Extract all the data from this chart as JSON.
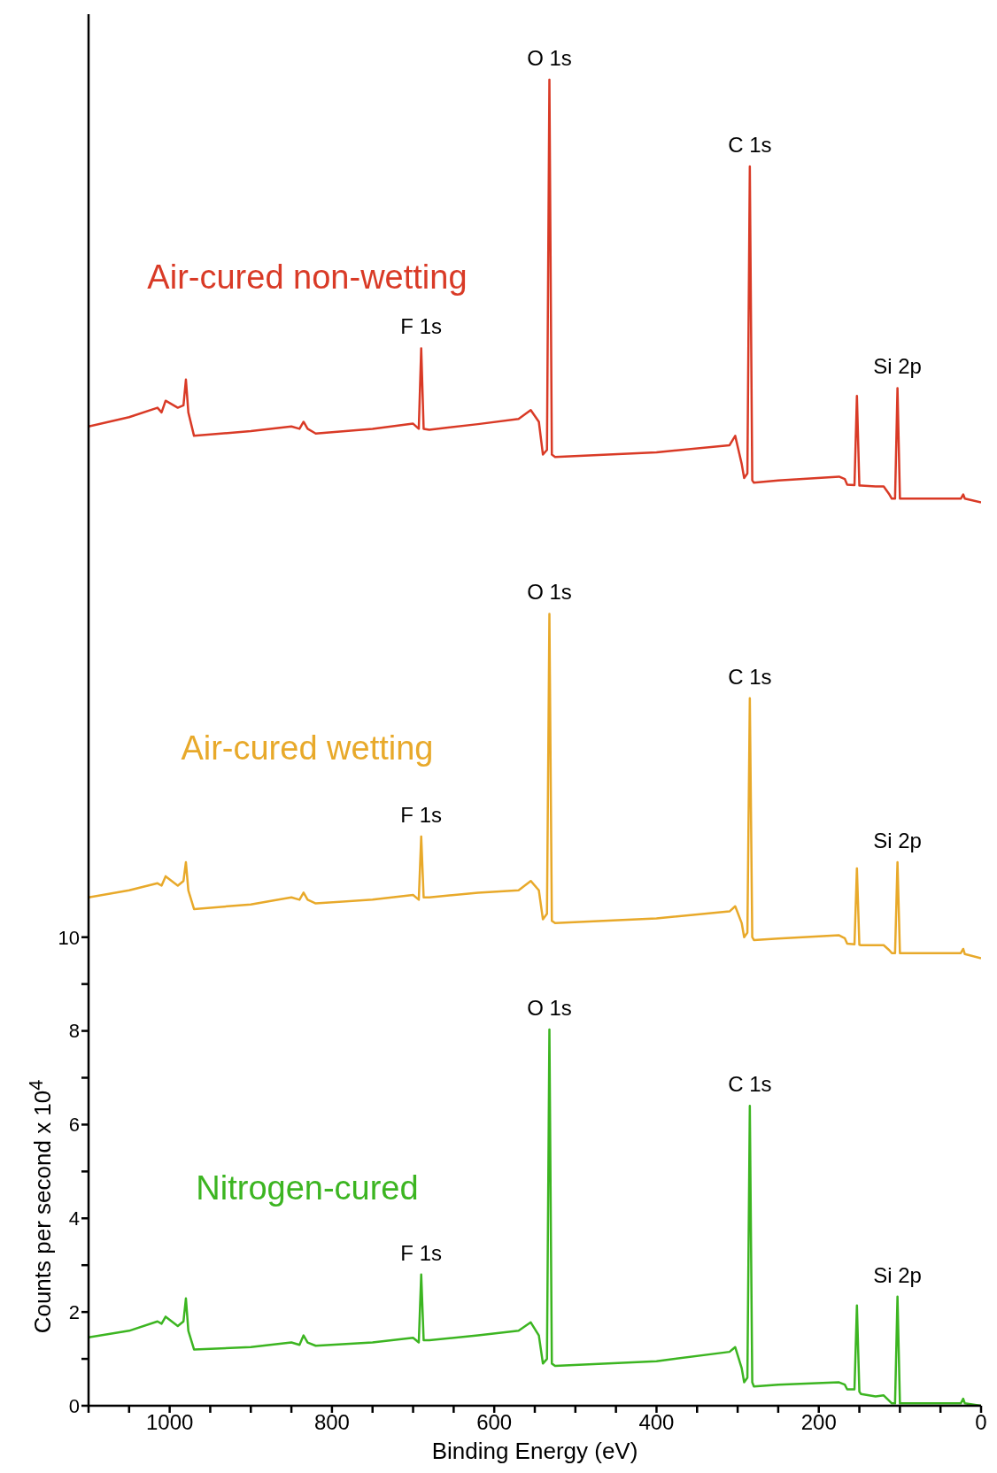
{
  "chart_data": {
    "type": "line",
    "xlabel": "Binding Energy (eV)",
    "ylabel": "Counts per second x 10$^{4}$",
    "xlim": [
      1100,
      0
    ],
    "xticks": [
      {
        "value": 1100,
        "label": null
      },
      {
        "value": 1050,
        "label": null
      },
      1000,
      {
        "value": 950,
        "label": null
      },
      {
        "value": 900,
        "label": null
      },
      {
        "value": 850,
        "label": null
      },
      800,
      {
        "value": 750,
        "label": null
      },
      {
        "value": 700,
        "label": null
      },
      {
        "value": 650,
        "label": null
      },
      600,
      {
        "value": 550,
        "label": null
      },
      {
        "value": 500,
        "label": null
      },
      {
        "value": 450,
        "label": null
      },
      400,
      {
        "value": 350,
        "label": null
      },
      {
        "value": 300,
        "label": null
      },
      {
        "value": 250,
        "label": null
      },
      200,
      {
        "value": 150,
        "label": null
      },
      {
        "value": 100,
        "label": null
      },
      {
        "value": 50,
        "label": null
      },
      0
    ],
    "ylim": [
      0,
      29.7
    ],
    "yticks": [
      0,
      {
        "value": 1,
        "label": null
      },
      2,
      {
        "value": 3,
        "label": null
      },
      4,
      {
        "value": 5,
        "label": null
      },
      6,
      {
        "value": 7,
        "label": null
      },
      8,
      {
        "value": 9,
        "label": null
      },
      10
    ],
    "grid": false,
    "legend": false,
    "marker": "none",
    "line_style": "solid",
    "x": [
      1100,
      1050,
      1015,
      1010,
      1005,
      990,
      983,
      980,
      977,
      970,
      900,
      850,
      840,
      835,
      830,
      820,
      750,
      700,
      693,
      690,
      687,
      680,
      620,
      570,
      555,
      545,
      540,
      535,
      532,
      529,
      525,
      400,
      310,
      303,
      295,
      292,
      288,
      285,
      282,
      280,
      250,
      175,
      168,
      165,
      156,
      153,
      150,
      148,
      130,
      120,
      113,
      110,
      106,
      103,
      100,
      98,
      60,
      25,
      22,
      20,
      0
    ],
    "series": [
      {
        "name": "Air-cured non-wetting",
        "color": "#d93a26",
        "values": [
          20.9,
          21.1,
          21.3,
          21.2,
          21.45,
          21.3,
          21.35,
          21.9,
          21.2,
          20.7,
          20.8,
          20.9,
          20.85,
          21.0,
          20.85,
          20.75,
          20.85,
          20.96,
          20.85,
          22.57,
          20.85,
          20.83,
          20.95,
          21.06,
          21.25,
          21.0,
          20.3,
          20.4,
          28.3,
          20.3,
          20.25,
          20.35,
          20.5,
          20.7,
          20.1,
          19.8,
          19.9,
          26.45,
          19.75,
          19.7,
          19.75,
          19.83,
          19.78,
          19.66,
          19.65,
          21.55,
          19.64,
          19.64,
          19.62,
          19.62,
          19.45,
          19.36,
          19.36,
          21.72,
          19.36,
          19.36,
          19.36,
          19.36,
          19.45,
          19.36,
          19.28
        ]
      },
      {
        "name": "Air-cured wetting",
        "color": "#e8a92a",
        "values": [
          10.85,
          11.0,
          11.15,
          11.1,
          11.3,
          11.1,
          11.2,
          11.6,
          11.0,
          10.6,
          10.7,
          10.85,
          10.8,
          10.95,
          10.8,
          10.72,
          10.8,
          10.9,
          10.8,
          12.15,
          10.85,
          10.85,
          10.95,
          11.0,
          11.2,
          11.0,
          10.38,
          10.5,
          16.9,
          10.35,
          10.3,
          10.4,
          10.55,
          10.66,
          10.3,
          10.0,
          10.1,
          15.1,
          10.0,
          9.94,
          9.97,
          10.04,
          9.98,
          9.86,
          9.85,
          11.47,
          9.84,
          9.83,
          9.83,
          9.83,
          9.72,
          9.66,
          9.66,
          11.6,
          9.66,
          9.66,
          9.66,
          9.66,
          9.75,
          9.64,
          9.55
        ]
      },
      {
        "name": "Nitrogen-cured",
        "color": "#3cb521",
        "values": [
          1.46,
          1.6,
          1.8,
          1.75,
          1.9,
          1.7,
          1.8,
          2.29,
          1.6,
          1.2,
          1.25,
          1.35,
          1.3,
          1.5,
          1.35,
          1.28,
          1.35,
          1.45,
          1.35,
          2.8,
          1.4,
          1.4,
          1.5,
          1.6,
          1.78,
          1.5,
          0.9,
          1.0,
          8.03,
          0.9,
          0.85,
          0.95,
          1.15,
          1.25,
          0.8,
          0.5,
          0.6,
          6.4,
          0.5,
          0.41,
          0.45,
          0.5,
          0.45,
          0.35,
          0.35,
          2.14,
          0.3,
          0.25,
          0.2,
          0.22,
          0.1,
          0.05,
          0.05,
          2.33,
          0.05,
          0.05,
          0.05,
          0.05,
          0.15,
          0.05,
          0.0
        ]
      }
    ],
    "annotations": [
      {
        "text": "O 1s",
        "x": 532,
        "y": 28.3
      },
      {
        "text": "C 1s",
        "x": 285,
        "y": 26.45
      },
      {
        "text": "F 1s",
        "x": 690,
        "y": 22.57
      },
      {
        "text": "Si 2p",
        "x": 103,
        "y": 21.72
      },
      {
        "text": "O 1s",
        "x": 532,
        "y": 16.9
      },
      {
        "text": "C 1s",
        "x": 285,
        "y": 15.1
      },
      {
        "text": "F 1s",
        "x": 690,
        "y": 12.15
      },
      {
        "text": "Si 2p",
        "x": 103,
        "y": 11.6
      },
      {
        "text": "O 1s",
        "x": 532,
        "y": 8.03
      },
      {
        "text": "C 1s",
        "x": 285,
        "y": 6.4
      },
      {
        "text": "F 1s",
        "x": 690,
        "y": 2.8
      },
      {
        "text": "Si 2p",
        "x": 103,
        "y": 2.33
      }
    ]
  }
}
